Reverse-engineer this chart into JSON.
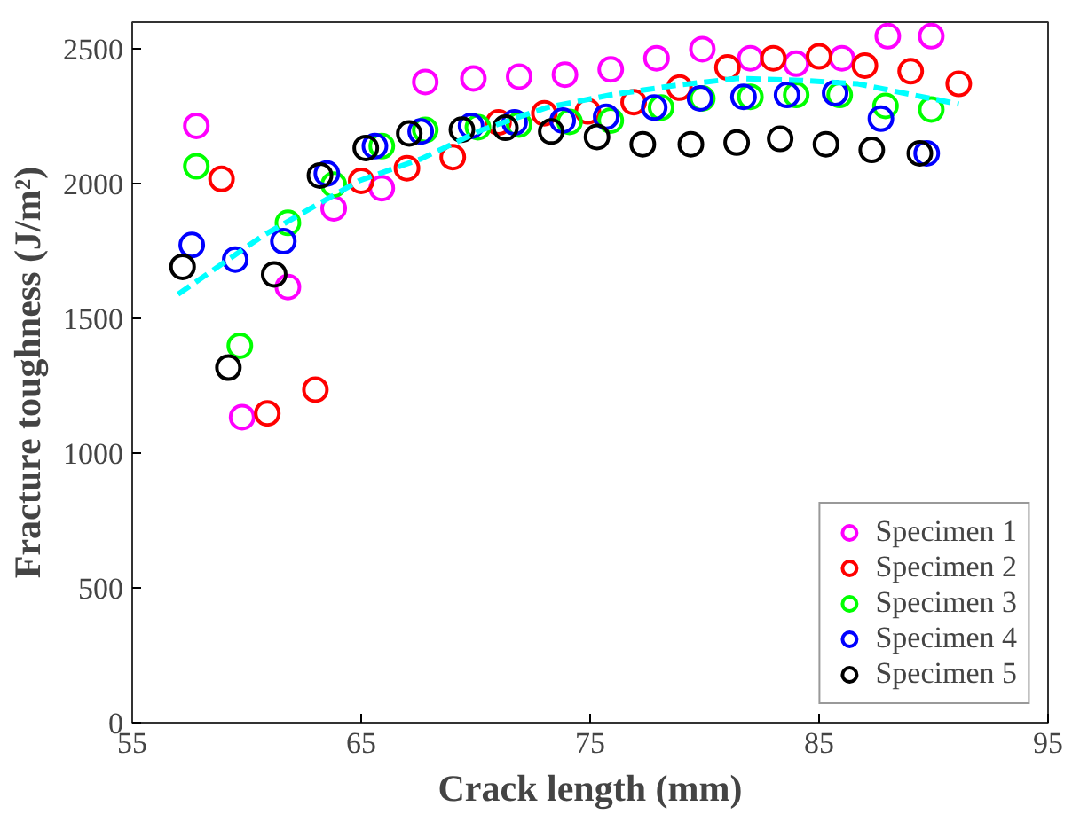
{
  "chart_data": {
    "type": "scatter",
    "xlabel": "Crack length (mm)",
    "ylabel": "Fracture toughness (J/m²)",
    "xlim": [
      55,
      95
    ],
    "ylim": [
      0,
      2600
    ],
    "xticks": [
      55,
      65,
      75,
      85,
      95
    ],
    "yticks": [
      0,
      500,
      1000,
      1500,
      2000,
      2500
    ],
    "grid": false,
    "legend": "bottom right",
    "marker": "circle",
    "series": [
      {
        "name": "Specimen 1",
        "color": "#ff00ff",
        "x": [
          57.8,
          59.8,
          61.8,
          63.8,
          65.9,
          67.8,
          69.9,
          71.9,
          73.9,
          75.9,
          77.9,
          79.9,
          82.0,
          84.0,
          86.0,
          88.0,
          89.9
        ],
        "values": [
          2215,
          1134,
          1617,
          1909,
          1984,
          2378,
          2391,
          2398,
          2405,
          2425,
          2466,
          2500,
          2466,
          2446,
          2466,
          2548,
          2548
        ]
      },
      {
        "name": "Specimen 2",
        "color": "#ff0000",
        "x": [
          58.9,
          60.9,
          63.0,
          65.0,
          67.0,
          69.0,
          71.0,
          73.0,
          74.9,
          76.9,
          78.9,
          81.0,
          83.0,
          85.0,
          87.0,
          89.0,
          91.1
        ],
        "values": [
          2018,
          1148,
          1236,
          2011,
          2058,
          2099,
          2228,
          2262,
          2269,
          2303,
          2357,
          2432,
          2466,
          2473,
          2439,
          2418,
          2371
        ]
      },
      {
        "name": "Specimen 3",
        "color": "#00ff00",
        "x": [
          57.8,
          59.7,
          61.8,
          63.8,
          65.9,
          67.8,
          70.1,
          71.9,
          74.1,
          75.9,
          78.1,
          79.9,
          82.0,
          84.0,
          85.9,
          87.9,
          89.9
        ],
        "values": [
          2065,
          1399,
          1855,
          1997,
          2140,
          2200,
          2210,
          2220,
          2230,
          2235,
          2283,
          2317,
          2323,
          2330,
          2330,
          2289,
          2276
        ]
      },
      {
        "name": "Specimen 4",
        "color": "#0000ff",
        "x": [
          57.6,
          59.5,
          61.6,
          63.5,
          65.6,
          67.6,
          69.8,
          71.7,
          73.8,
          75.7,
          77.8,
          79.8,
          81.7,
          83.6,
          85.7,
          87.7,
          89.7
        ],
        "values": [
          1773,
          1719,
          1787,
          2038,
          2140,
          2194,
          2215,
          2228,
          2235,
          2249,
          2283,
          2317,
          2323,
          2330,
          2337,
          2242,
          2113
        ]
      },
      {
        "name": "Specimen 5",
        "color": "#000000",
        "x": [
          57.2,
          59.2,
          61.2,
          63.2,
          65.2,
          67.1,
          69.4,
          71.3,
          73.3,
          75.3,
          77.3,
          79.4,
          81.4,
          83.3,
          85.3,
          87.3,
          89.4
        ],
        "values": [
          1692,
          1318,
          1664,
          2031,
          2133,
          2187,
          2201,
          2208,
          2194,
          2174,
          2147,
          2147,
          2153,
          2167,
          2147,
          2126,
          2113
        ]
      },
      {
        "type": "line",
        "line_style": "dashed",
        "marker": "none",
        "color": "#00ffff",
        "x": [
          57.0,
          60.7,
          64.9,
          67.6,
          70.3,
          73.1,
          75.9,
          78.6,
          81.4,
          84.2,
          86.7,
          91.1
        ],
        "values": [
          1590,
          1807,
          2011,
          2092,
          2201,
          2283,
          2330,
          2364,
          2391,
          2384,
          2371,
          2296
        ]
      }
    ]
  }
}
